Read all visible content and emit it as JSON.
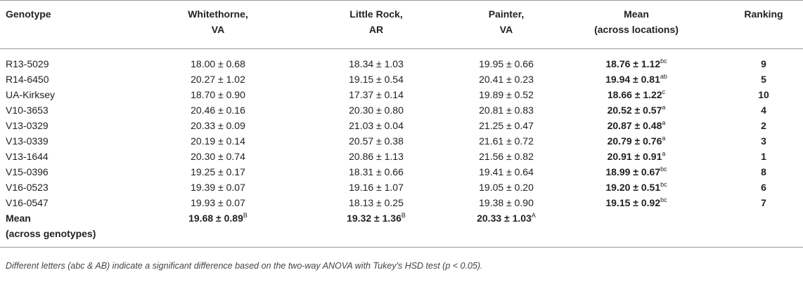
{
  "table": {
    "header": [
      [
        "Genotype"
      ],
      [
        "Whitethorne,",
        "VA"
      ],
      [
        "Little Rock,",
        "AR"
      ],
      [
        "Painter,",
        "VA"
      ],
      [
        "Mean",
        "(across locations)"
      ],
      [
        "Ranking"
      ]
    ],
    "rows": [
      {
        "genotype": "R13-5029",
        "cells": [
          "18.00 ± 0.68",
          "18.34 ± 1.03",
          "19.95 ± 0.66"
        ],
        "mean": "18.76 ± 1.12",
        "sup": "bc",
        "ranking": "9"
      },
      {
        "genotype": "R14-6450",
        "cells": [
          "20.27 ± 1.02",
          "19.15 ± 0.54",
          "20.41 ± 0.23"
        ],
        "mean": "19.94 ± 0.81",
        "sup": "ab",
        "ranking": "5"
      },
      {
        "genotype": "UA-Kirksey",
        "cells": [
          "18.70 ± 0.90",
          "17.37 ± 0.14",
          "19.89 ± 0.52"
        ],
        "mean": "18.66 ± 1.22",
        "sup": "c",
        "ranking": "10"
      },
      {
        "genotype": "V10-3653",
        "cells": [
          "20.46 ± 0.16",
          "20.30 ± 0.80",
          "20.81 ± 0.83"
        ],
        "mean": "20.52 ± 0.57",
        "sup": "a",
        "ranking": "4"
      },
      {
        "genotype": "V13-0329",
        "cells": [
          "20.33 ± 0.09",
          "21.03 ± 0.04",
          "21.25 ± 0.47"
        ],
        "mean": "20.87 ± 0.48",
        "sup": "a",
        "ranking": "2"
      },
      {
        "genotype": "V13-0339",
        "cells": [
          "20.19 ± 0.14",
          "20.57 ± 0.38",
          "21.61 ± 0.72"
        ],
        "mean": "20.79 ± 0.76",
        "sup": "a",
        "ranking": "3"
      },
      {
        "genotype": "V13-1644",
        "cells": [
          "20.30 ± 0.74",
          "20.86 ± 1.13",
          "21.56 ± 0.82"
        ],
        "mean": "20.91 ± 0.91",
        "sup": "a",
        "ranking": "1"
      },
      {
        "genotype": "V15-0396",
        "cells": [
          "19.25 ± 0.17",
          "18.31 ± 0.66",
          "19.41 ± 0.64"
        ],
        "mean": "18.99 ± 0.67",
        "sup": "bc",
        "ranking": "8"
      },
      {
        "genotype": "V16-0523",
        "cells": [
          "19.39 ± 0.07",
          "19.16 ± 1.07",
          "19.05 ± 0.20"
        ],
        "mean": "19.20 ± 0.51",
        "sup": "bc",
        "ranking": "6"
      },
      {
        "genotype": "V16-0547",
        "cells": [
          "19.93 ± 0.07",
          "18.13 ± 0.25",
          "19.38 ± 0.90"
        ],
        "mean": "19.15 ± 0.92",
        "sup": "bc",
        "ranking": "7"
      }
    ],
    "mean_row": {
      "label": [
        "Mean",
        "(across genotypes)"
      ],
      "cells": [
        {
          "value": "19.68 ± 0.89",
          "sup": "B"
        },
        {
          "value": "19.32 ± 1.36",
          "sup": "B"
        },
        {
          "value": "20.33 ± 1.03",
          "sup": "A"
        }
      ]
    },
    "footnote": "Different letters (abc & AB) indicate a significant difference based on the two-way ANOVA with Tukey's HSD test (p < 0.05)."
  }
}
